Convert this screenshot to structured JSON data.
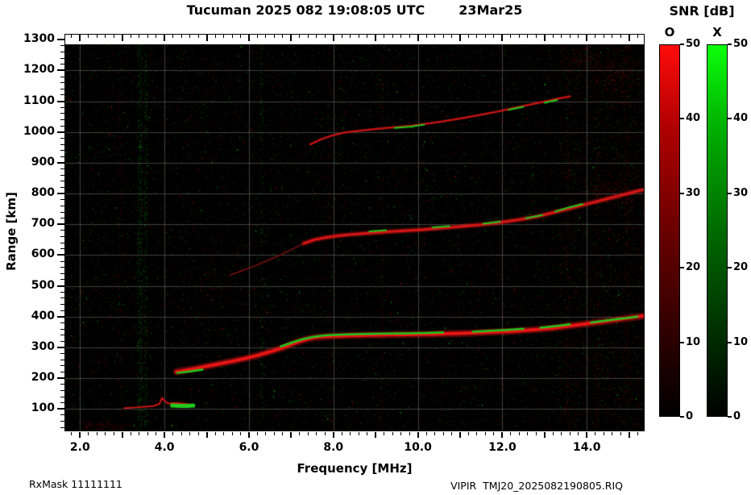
{
  "header": {
    "title_left": "Tucuman 2025 082 19:08:05 UTC",
    "title_right": "23Mar25"
  },
  "axes": {
    "x": {
      "label": "Frequency [MHz]",
      "min": 1.65,
      "max": 15.35,
      "minor_step": 0.2,
      "major_step": 1,
      "labeled": [
        {
          "v": 2,
          "t": "2.0"
        },
        {
          "v": 4,
          "t": "4.0"
        },
        {
          "v": 6,
          "t": "6.0"
        },
        {
          "v": 8,
          "t": "8.0"
        },
        {
          "v": 10,
          "t": "10.0"
        },
        {
          "v": 12,
          "t": "12.0"
        },
        {
          "v": 14,
          "t": "14.0"
        }
      ]
    },
    "y": {
      "label": "Range [km]",
      "min": 30,
      "max": 1285,
      "minor_step": 20,
      "major_step": 100,
      "labeled": [
        {
          "v": 100,
          "t": "100"
        },
        {
          "v": 200,
          "t": "200"
        },
        {
          "v": 300,
          "t": "300"
        },
        {
          "v": 400,
          "t": "400"
        },
        {
          "v": 500,
          "t": "500"
        },
        {
          "v": 600,
          "t": "600"
        },
        {
          "v": 700,
          "t": "700"
        },
        {
          "v": 800,
          "t": "800"
        },
        {
          "v": 900,
          "t": "900"
        },
        {
          "v": 1000,
          "t": "1000"
        },
        {
          "v": 1100,
          "t": "1100"
        },
        {
          "v": 1200,
          "t": "1200"
        },
        {
          "v": 1300,
          "t": "1300"
        }
      ]
    }
  },
  "colorbar": {
    "title": "SNR [dB]",
    "ticks": [
      0,
      10,
      20,
      30,
      40,
      50
    ],
    "range": [
      0,
      50
    ],
    "bars": [
      {
        "label": "O",
        "mode": "O-mode",
        "stops": [
          "#000000 0%",
          "#2e0000 22%",
          "#6a0000 50%",
          "#b00000 78%",
          "#ff0c0c 100%"
        ]
      },
      {
        "label": "X",
        "mode": "X-mode",
        "stops": [
          "#000000 0%",
          "#002e00 22%",
          "#006a00 50%",
          "#00b000 78%",
          "#0cff0c 100%"
        ]
      }
    ]
  },
  "footer": {
    "left": "RxMask 11111111",
    "right": "VIPIR  TMJ20_2025082190805.RIQ"
  },
  "chart_data": {
    "type": "heatmap",
    "subtype": "ionogram",
    "title": "Tucuman 2025 082 19:08:05 UTC 23Mar25",
    "xlabel": "Frequency [MHz]",
    "ylabel": "Range [km]",
    "xlim": [
      1.65,
      15.35
    ],
    "ylim": [
      30,
      1285
    ],
    "grid": {
      "x_values": [
        2,
        4,
        6,
        8,
        10,
        12,
        14
      ],
      "y_values": [
        100,
        200,
        300,
        400,
        500,
        600,
        700,
        800,
        900,
        1000,
        1100,
        1200
      ],
      "color": "rgba(115,115,115,0.55)"
    },
    "background": "#000000",
    "series": [
      {
        "name": "E-layer echo (O-mode)",
        "color": "#cc1414",
        "width": 2,
        "points": [
          [
            3.05,
            103
          ],
          [
            3.3,
            105
          ],
          [
            3.55,
            107
          ],
          [
            3.75,
            110
          ],
          [
            3.88,
            117
          ],
          [
            3.94,
            136
          ],
          [
            4.0,
            127
          ],
          [
            4.08,
            118
          ],
          [
            4.25,
            120
          ],
          [
            4.45,
            117
          ],
          [
            4.65,
            114
          ]
        ]
      },
      {
        "name": "E-layer echo (X-mode)",
        "color": "#1fcc1f",
        "width": 5,
        "points": [
          [
            4.18,
            111
          ],
          [
            4.35,
            110
          ],
          [
            4.55,
            110
          ],
          [
            4.68,
            111
          ]
        ]
      },
      {
        "name": "F 1-hop trace (O-mode)",
        "color": "#ea1414",
        "width": 4,
        "halo": true,
        "points": [
          [
            4.28,
            221
          ],
          [
            4.5,
            226
          ],
          [
            4.75,
            232
          ],
          [
            5.0,
            239
          ],
          [
            5.3,
            247
          ],
          [
            5.6,
            255
          ],
          [
            5.9,
            264
          ],
          [
            6.2,
            274
          ],
          [
            6.5,
            286
          ],
          [
            6.8,
            299
          ],
          [
            7.0,
            310
          ],
          [
            7.2,
            320
          ],
          [
            7.4,
            328
          ],
          [
            7.6,
            333
          ],
          [
            7.9,
            336
          ],
          [
            8.3,
            338
          ],
          [
            8.8,
            340
          ],
          [
            9.3,
            341
          ],
          [
            9.8,
            342
          ],
          [
            10.3,
            343
          ],
          [
            10.8,
            345
          ],
          [
            11.3,
            347
          ],
          [
            11.8,
            350
          ],
          [
            12.3,
            353
          ],
          [
            12.8,
            358
          ],
          [
            13.2,
            363
          ],
          [
            13.6,
            370
          ],
          [
            14.0,
            377
          ],
          [
            14.4,
            384
          ],
          [
            14.8,
            392
          ],
          [
            15.1,
            398
          ],
          [
            15.32,
            402
          ]
        ]
      },
      {
        "name": "F 1-hop trace (X-mode)",
        "color": "#1dc91d",
        "width": 2.5,
        "segments": [
          [
            [
              6.75,
              303
            ],
            [
              7.0,
              315
            ],
            [
              7.25,
              326
            ],
            [
              7.5,
              334
            ],
            [
              7.8,
              339
            ],
            [
              8.2,
              342
            ],
            [
              8.7,
              344
            ],
            [
              9.2,
              345
            ],
            [
              9.7,
              346
            ],
            [
              10.2,
              347
            ],
            [
              10.6,
              349
            ]
          ],
          [
            [
              11.3,
              351
            ],
            [
              11.7,
              354
            ],
            [
              12.1,
              357
            ],
            [
              12.5,
              361
            ]
          ],
          [
            [
              12.9,
              364
            ],
            [
              13.3,
              370
            ],
            [
              13.6,
              375
            ]
          ],
          [
            [
              14.1,
              381
            ],
            [
              14.5,
              388
            ],
            [
              14.9,
              395
            ],
            [
              15.2,
              400
            ]
          ],
          [
            [
              4.3,
              217
            ],
            [
              4.6,
              222
            ],
            [
              4.9,
              228
            ]
          ]
        ]
      },
      {
        "name": "F 2-hop leading edge (O-mode)",
        "color": "#7d1010",
        "width": 1.5,
        "points": [
          [
            5.55,
            535
          ],
          [
            5.85,
            550
          ],
          [
            6.15,
            566
          ],
          [
            6.45,
            583
          ],
          [
            6.75,
            601
          ],
          [
            7.05,
            621
          ],
          [
            7.3,
            638
          ]
        ]
      },
      {
        "name": "F 2-hop trace (O-mode)",
        "color": "#d81515",
        "width": 3,
        "halo": true,
        "points": [
          [
            7.3,
            638
          ],
          [
            7.55,
            650
          ],
          [
            7.8,
            657
          ],
          [
            8.1,
            663
          ],
          [
            8.5,
            668
          ],
          [
            9.0,
            673
          ],
          [
            9.5,
            678
          ],
          [
            10.0,
            682
          ],
          [
            10.5,
            687
          ],
          [
            11.0,
            693
          ],
          [
            11.5,
            699
          ],
          [
            12.0,
            707
          ],
          [
            12.4,
            715
          ],
          [
            12.8,
            725
          ],
          [
            13.2,
            738
          ],
          [
            13.6,
            752
          ],
          [
            14.0,
            766
          ],
          [
            14.4,
            780
          ],
          [
            14.8,
            794
          ],
          [
            15.1,
            805
          ],
          [
            15.32,
            812
          ]
        ]
      },
      {
        "name": "F 2-hop trace (X-mode)",
        "color": "#1dc91d",
        "width": 2,
        "segments": [
          [
            [
              8.85,
              677
            ],
            [
              9.25,
              681
            ]
          ],
          [
            [
              10.35,
              690
            ],
            [
              10.75,
              694
            ]
          ],
          [
            [
              11.55,
              702
            ],
            [
              11.95,
              709
            ]
          ],
          [
            [
              12.55,
              720
            ],
            [
              12.95,
              730
            ]
          ],
          [
            [
              13.25,
              742
            ],
            [
              13.6,
              756
            ],
            [
              13.9,
              766
            ]
          ]
        ]
      },
      {
        "name": "F 3-hop trace (O-mode)",
        "color": "#c31212",
        "width": 2.5,
        "points": [
          [
            7.45,
            960
          ],
          [
            7.7,
            976
          ],
          [
            7.95,
            988
          ],
          [
            8.25,
            998
          ],
          [
            8.6,
            1004
          ],
          [
            9.0,
            1010
          ],
          [
            9.4,
            1015
          ],
          [
            9.8,
            1020
          ],
          [
            10.2,
            1027
          ],
          [
            10.6,
            1035
          ],
          [
            11.0,
            1044
          ],
          [
            11.4,
            1054
          ],
          [
            11.8,
            1064
          ],
          [
            12.2,
            1076
          ],
          [
            12.6,
            1088
          ],
          [
            13.0,
            1099
          ],
          [
            13.3,
            1108
          ],
          [
            13.6,
            1116
          ]
        ]
      },
      {
        "name": "F 3-hop trace (X-mode)",
        "color": "#1dc91d",
        "width": 2,
        "segments": [
          [
            [
              9.45,
              1013
            ],
            [
              9.85,
              1018
            ],
            [
              10.15,
              1024
            ]
          ],
          [
            [
              12.15,
              1072
            ],
            [
              12.5,
              1082
            ]
          ],
          [
            [
              13.0,
              1095
            ],
            [
              13.3,
              1104
            ]
          ]
        ]
      }
    ],
    "noise": {
      "base_count": 12000,
      "bright_count": 420,
      "red_fraction": 0.55,
      "right_extra": {
        "from_f": 13.3,
        "count": 2600,
        "red_fraction": 0.8
      },
      "stripes": [
        {
          "f": 3.42,
          "color": "green",
          "n": 700,
          "spread": 3
        },
        {
          "f": 3.56,
          "color": "green",
          "n": 350,
          "spread": 2
        },
        {
          "f": 2.95,
          "color": "red",
          "n": 180,
          "spread": 2
        },
        {
          "f": 6.3,
          "color": "green",
          "n": 200,
          "spread": 2
        },
        {
          "f": 7.9,
          "color": "red",
          "n": 150,
          "spread": 2
        },
        {
          "f": 9.15,
          "color": "red",
          "n": 140,
          "spread": 2
        },
        {
          "f": 12.0,
          "color": "red",
          "n": 140,
          "spread": 2
        },
        {
          "f": 13.55,
          "color": "red",
          "n": 220,
          "spread": 2.5
        },
        {
          "f": 14.25,
          "color": "red",
          "n": 200,
          "spread": 2.5
        },
        {
          "f": 14.95,
          "color": "red",
          "n": 220,
          "spread": 2.5
        }
      ],
      "clusters": [
        {
          "f": 14.55,
          "r": 800,
          "df": 0.8,
          "dr": 45,
          "n": 300,
          "color": "red"
        },
        {
          "f": 14.7,
          "r": 1180,
          "df": 0.7,
          "dr": 85,
          "n": 260,
          "color": "red"
        },
        {
          "f": 13.9,
          "r": 1230,
          "df": 0.5,
          "dr": 50,
          "n": 120,
          "color": "red"
        },
        {
          "f": 2.6,
          "r": 45,
          "df": 0.8,
          "dr": 15,
          "n": 120,
          "color": "red"
        },
        {
          "f": 5.1,
          "r": 500,
          "df": 1.5,
          "dr": 120,
          "n": 150,
          "color": "red"
        }
      ]
    }
  }
}
